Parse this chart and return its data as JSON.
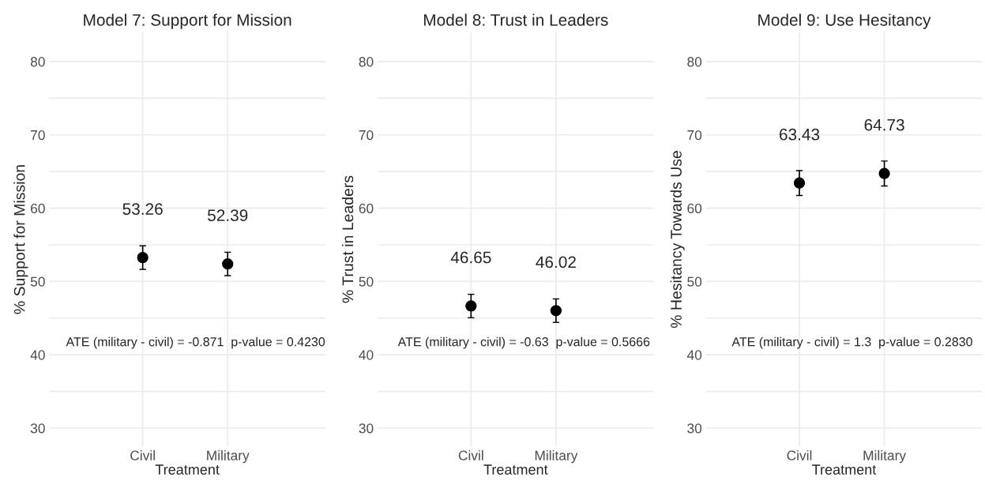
{
  "chart_data": [
    {
      "type": "scatter",
      "title": "Model 7: Support for Mission",
      "xlabel": "Treatment",
      "ylabel": "% Support for Mission",
      "categories": [
        "Civil",
        "Military"
      ],
      "values": [
        53.26,
        52.39
      ],
      "errors": [
        1.6,
        1.6
      ],
      "color": "#000000",
      "marker": "circle",
      "data_labels": true,
      "ylim": [
        27.5,
        84
      ],
      "yticks": [
        30,
        {
          "value": 35,
          "label": null
        },
        40,
        {
          "value": 45,
          "label": null
        },
        50,
        {
          "value": 55,
          "label": null
        },
        60,
        {
          "value": 65,
          "label": null
        },
        70,
        {
          "value": 75,
          "label": null
        },
        80
      ],
      "grid": true,
      "annotations": [
        "ATE (military - civil) = -0.871  p-value = 0.4230"
      ]
    },
    {
      "type": "scatter",
      "title": "Model 8: Trust in Leaders",
      "xlabel": "Treatment",
      "ylabel": "% Trust in Leaders",
      "categories": [
        "Civil",
        "Military"
      ],
      "values": [
        46.65,
        46.02
      ],
      "errors": [
        1.6,
        1.6
      ],
      "color": "#000000",
      "marker": "circle",
      "data_labels": true,
      "ylim": [
        27.5,
        84
      ],
      "yticks": [
        30,
        {
          "value": 35,
          "label": null
        },
        40,
        {
          "value": 45,
          "label": null
        },
        50,
        {
          "value": 55,
          "label": null
        },
        60,
        {
          "value": 65,
          "label": null
        },
        70,
        {
          "value": 75,
          "label": null
        },
        80
      ],
      "grid": true,
      "annotations": [
        "ATE (military - civil) = -0.63  p-value = 0.5666"
      ]
    },
    {
      "type": "scatter",
      "title": "Model 9: Use Hesitancy",
      "xlabel": "Treatment",
      "ylabel": "% Hesitancy Towards Use",
      "categories": [
        "Civil",
        "Military"
      ],
      "values": [
        63.43,
        64.73
      ],
      "errors": [
        1.7,
        1.7
      ],
      "color": "#000000",
      "marker": "circle",
      "data_labels": true,
      "ylim": [
        27.5,
        84
      ],
      "yticks": [
        30,
        {
          "value": 35,
          "label": null
        },
        40,
        {
          "value": 45,
          "label": null
        },
        50,
        {
          "value": 55,
          "label": null
        },
        60,
        {
          "value": 65,
          "label": null
        },
        70,
        {
          "value": 75,
          "label": null
        },
        80
      ],
      "grid": true,
      "annotations": [
        "ATE (military - civil) = 1.3  p-value = 0.2830"
      ]
    }
  ]
}
